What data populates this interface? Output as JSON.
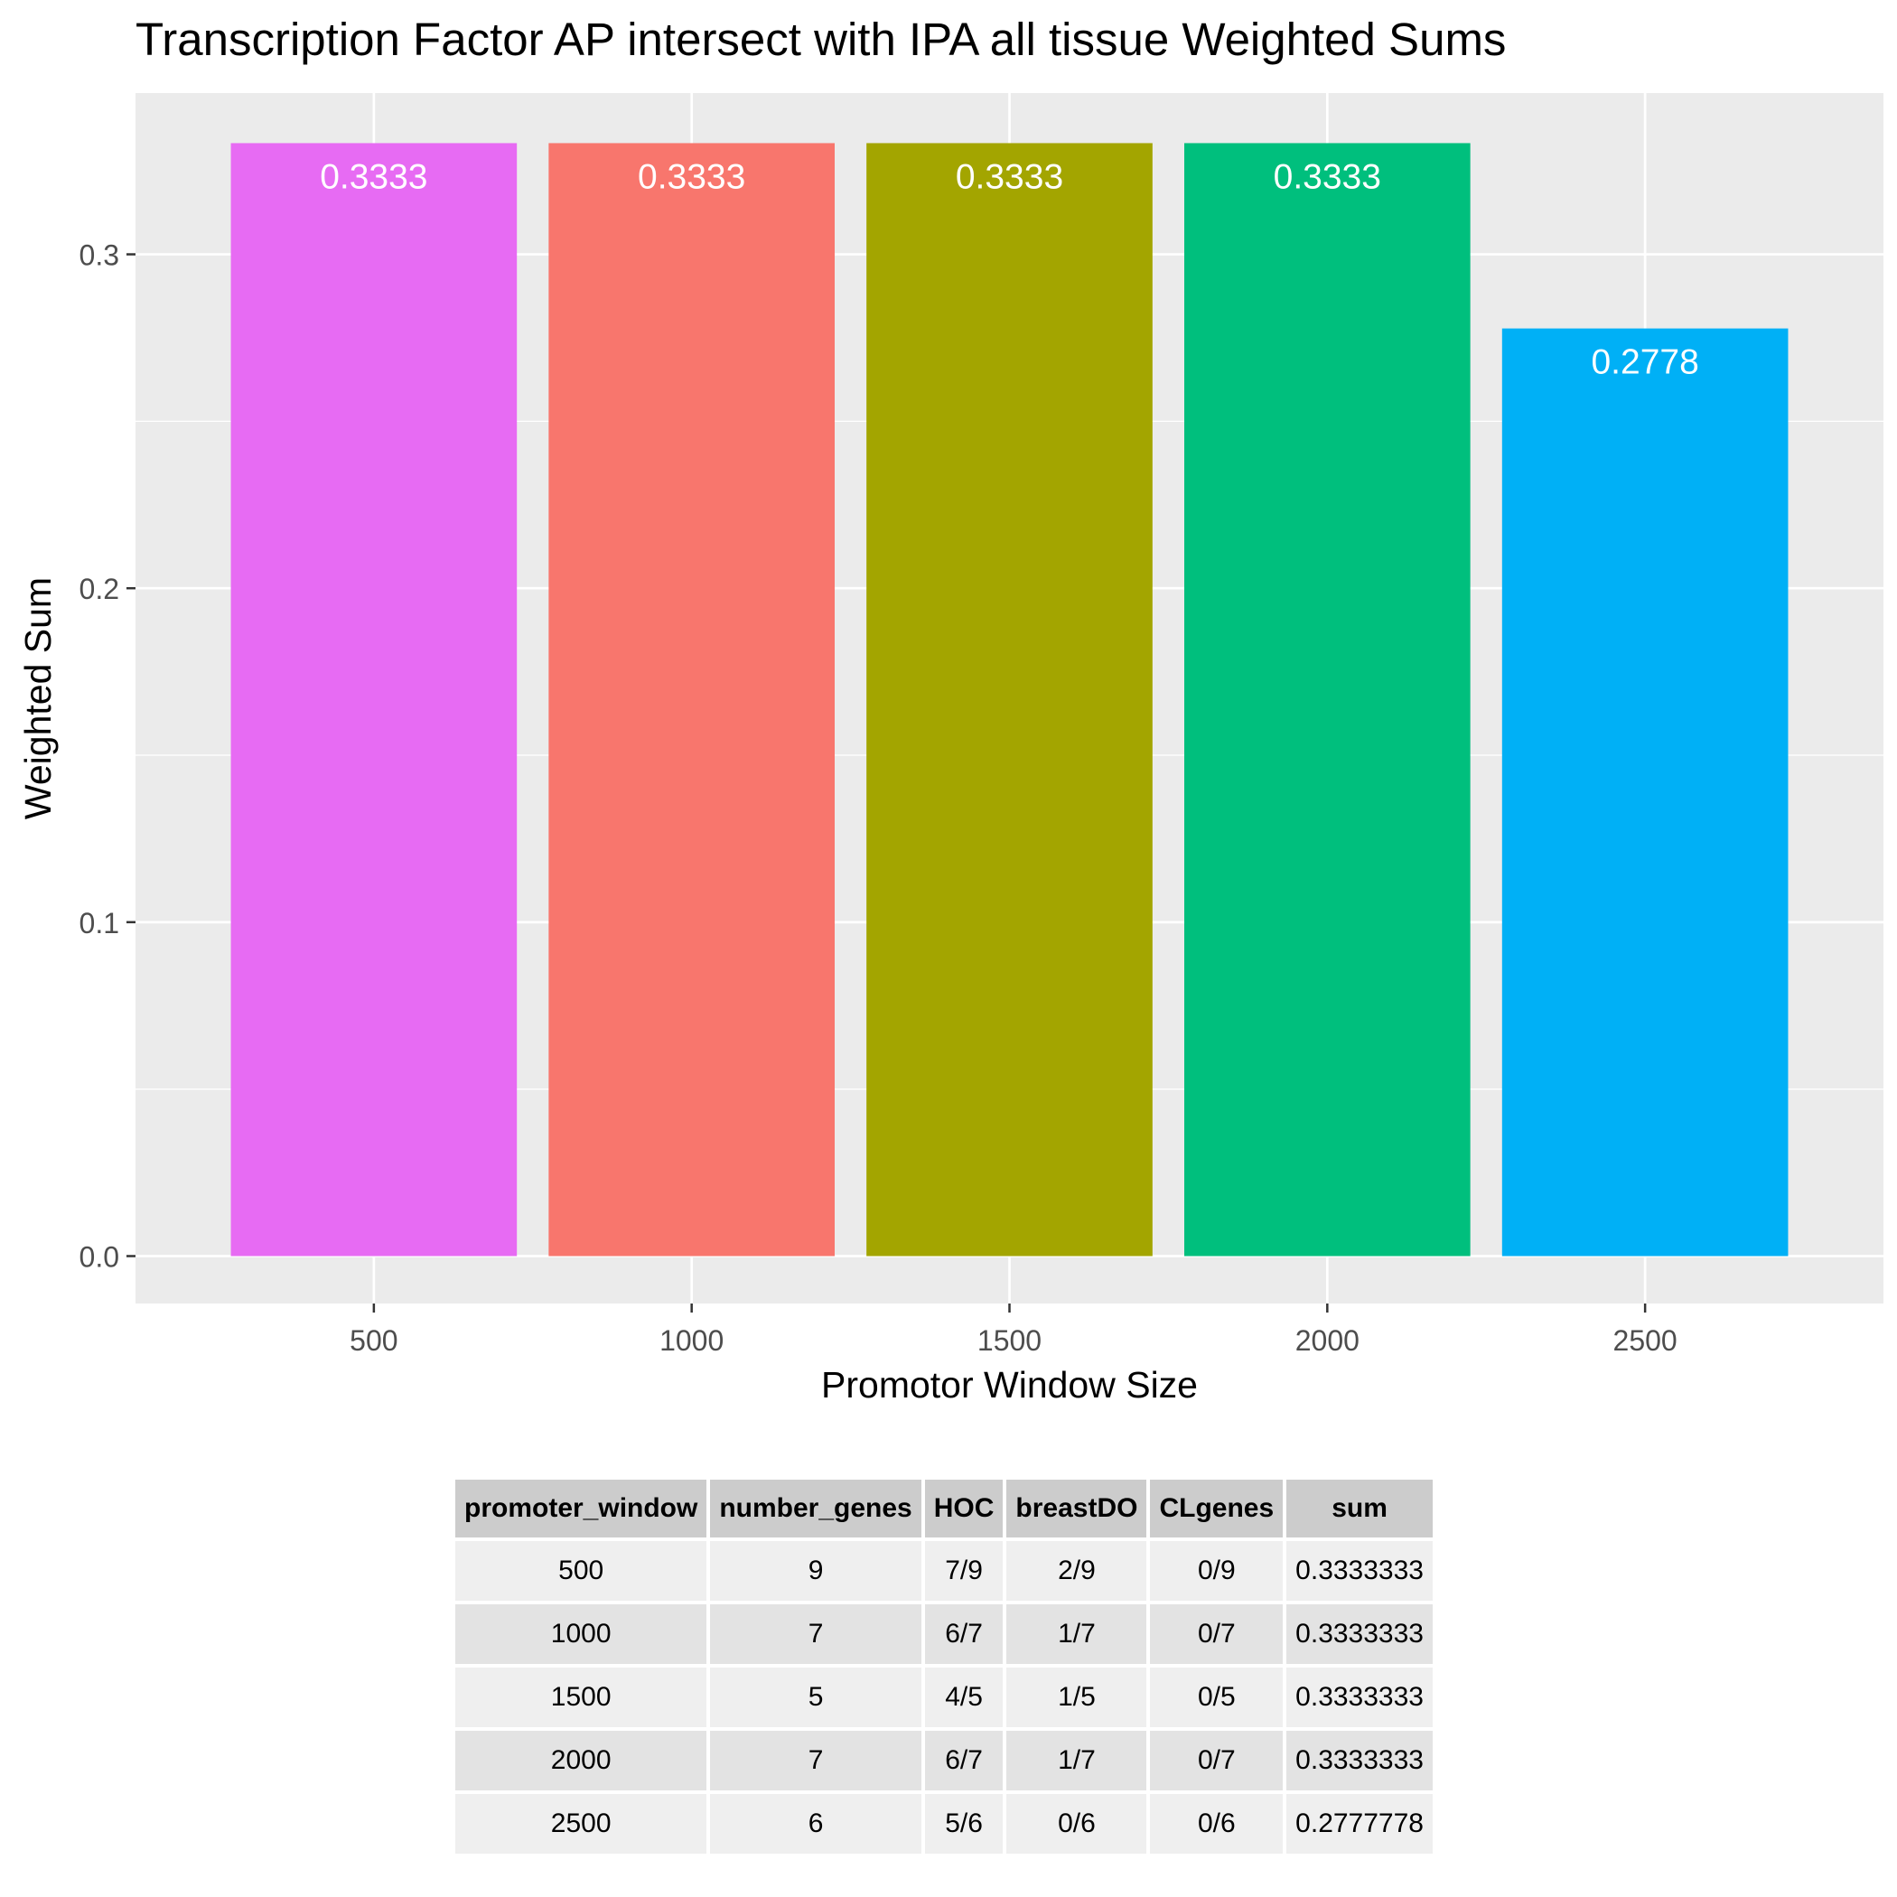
{
  "chart_data": {
    "type": "bar",
    "title": "Transcription Factor AP intersect with IPA all tissue Weighted Sums",
    "xlabel": "Promotor Window Size",
    "ylabel": "Weighted Sum",
    "categories": [
      "500",
      "1000",
      "1500",
      "2000",
      "2500"
    ],
    "values": [
      0.3333,
      0.3333,
      0.3333,
      0.3333,
      0.2778
    ],
    "data_labels": [
      "0.3333",
      "0.3333",
      "0.3333",
      "0.3333",
      "0.2778"
    ],
    "colors": [
      "#E76BF3",
      "#F8766D",
      "#A3A500",
      "#00BF7D",
      "#00B0F6"
    ],
    "xlim": [
      125,
      2875
    ],
    "ylim": [
      -0.0142,
      0.3483
    ],
    "y_ticks": [
      0.0,
      0.1,
      0.2,
      0.3
    ],
    "y_tick_labels": [
      "0.0",
      "0.1",
      "0.2",
      "0.3"
    ],
    "y_minor_ticks": [
      0.05,
      0.15,
      0.25
    ],
    "grid": true,
    "legend": "none",
    "panel_background": "#EBEBEB"
  },
  "table": {
    "headers": [
      "promoter_window",
      "number_genes",
      "HOC",
      "breastDO",
      "CLgenes",
      "sum"
    ],
    "rows": [
      [
        "500",
        "9",
        "7/9",
        "2/9",
        "0/9",
        "0.3333333"
      ],
      [
        "1000",
        "7",
        "6/7",
        "1/7",
        "0/7",
        "0.3333333"
      ],
      [
        "1500",
        "5",
        "4/5",
        "1/5",
        "0/5",
        "0.3333333"
      ],
      [
        "2000",
        "7",
        "6/7",
        "1/7",
        "0/7",
        "0.3333333"
      ],
      [
        "2500",
        "6",
        "5/6",
        "0/6",
        "0/6",
        "0.2777778"
      ]
    ]
  }
}
